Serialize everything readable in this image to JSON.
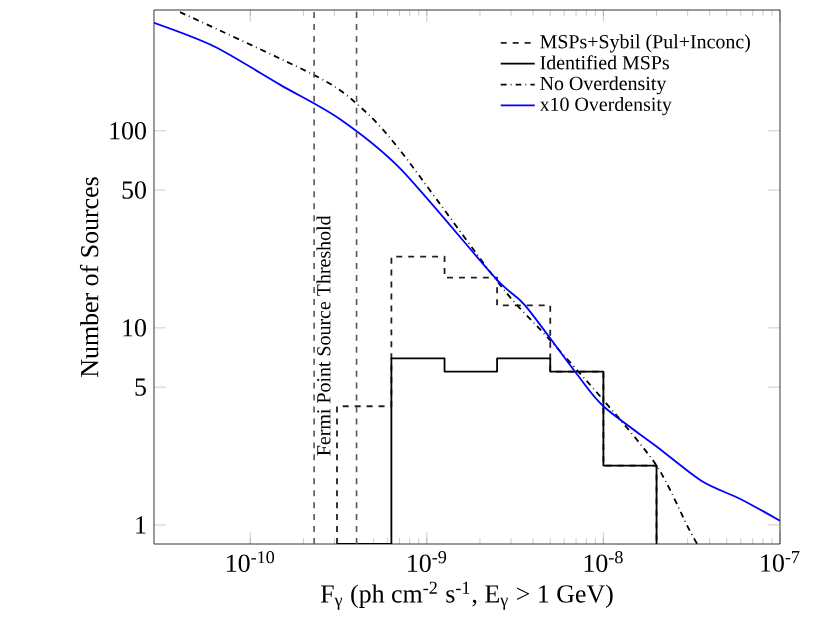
{
  "chart_data": {
    "type": "histogram",
    "xlabel": "F$_{γ}$ (ph cm$^{-2}$ s$^{-1}$, E$_{γ}$ > 1 GeV)",
    "ylabel": "Number of Sources",
    "log": "xy",
    "xlim": [
      2.85e-11,
      1e-07
    ],
    "ylim": [
      0.8,
      410
    ],
    "xticks": [
      {
        "value": 1e-10,
        "label": "10$^{-10}$"
      },
      {
        "value": 1e-09,
        "label": "10$^{-9}$"
      },
      {
        "value": 1e-08,
        "label": "10$^{-8}$"
      },
      {
        "value": 1e-07,
        "label": "10$^{-7}$"
      }
    ],
    "yticks": [
      1,
      5,
      10,
      50,
      100
    ],
    "legend": "top right",
    "bins": [
      3.1e-10,
      6.3e-10,
      1.26e-09,
      2.5e-09,
      5e-09,
      1e-08,
      2e-08
    ],
    "series": [
      {
        "name": "MSPs+Sybil (Pul+Inconc)",
        "color": "#202020",
        "line_style": "dashed",
        "values": [
          4,
          23,
          18,
          13,
          6,
          2
        ]
      },
      {
        "name": "Identified MSPs",
        "color": "#000000",
        "line_style": "solid",
        "values": [
          null,
          7,
          6,
          7,
          6,
          2
        ]
      },
      {
        "name": "No Overdensity",
        "type": "line",
        "color": "#000000",
        "line_style": "dashdot",
        "x": [
          4e-11,
          2.4e-10,
          4.2e-10,
          7.1e-10,
          2.6e-09,
          4.8e-09,
          1e-08,
          2e-08,
          3e-08,
          3.4e-08
        ],
        "values": [
          400,
          188,
          132,
          79,
          16.5,
          9,
          4.3,
          2.0,
          0.98,
          0.8
        ]
      },
      {
        "name": "x10 Overdensity",
        "type": "line",
        "color": "#0000ff",
        "line_style": "solid",
        "x": [
          2.85e-11,
          6.3e-11,
          1.48e-10,
          3.2e-10,
          7.1e-10,
          2.43e-09,
          3.6e-09,
          6.9e-09,
          1e-08,
          2e-08,
          3.6e-08,
          6e-08,
          1e-07
        ],
        "values": [
          353,
          267,
          171,
          115,
          64,
          18,
          13,
          6,
          4.0,
          2.5,
          1.67,
          1.35,
          1.05
        ]
      }
    ],
    "ref_lines": [
      {
        "axis": "x",
        "value": 2.3e-10,
        "color": "#555555",
        "line_style": "dashed",
        "label": "Fermi Point Source Threshold"
      },
      {
        "axis": "x",
        "value": 4e-10,
        "color": "#555555",
        "line_style": "dashed"
      }
    ]
  }
}
